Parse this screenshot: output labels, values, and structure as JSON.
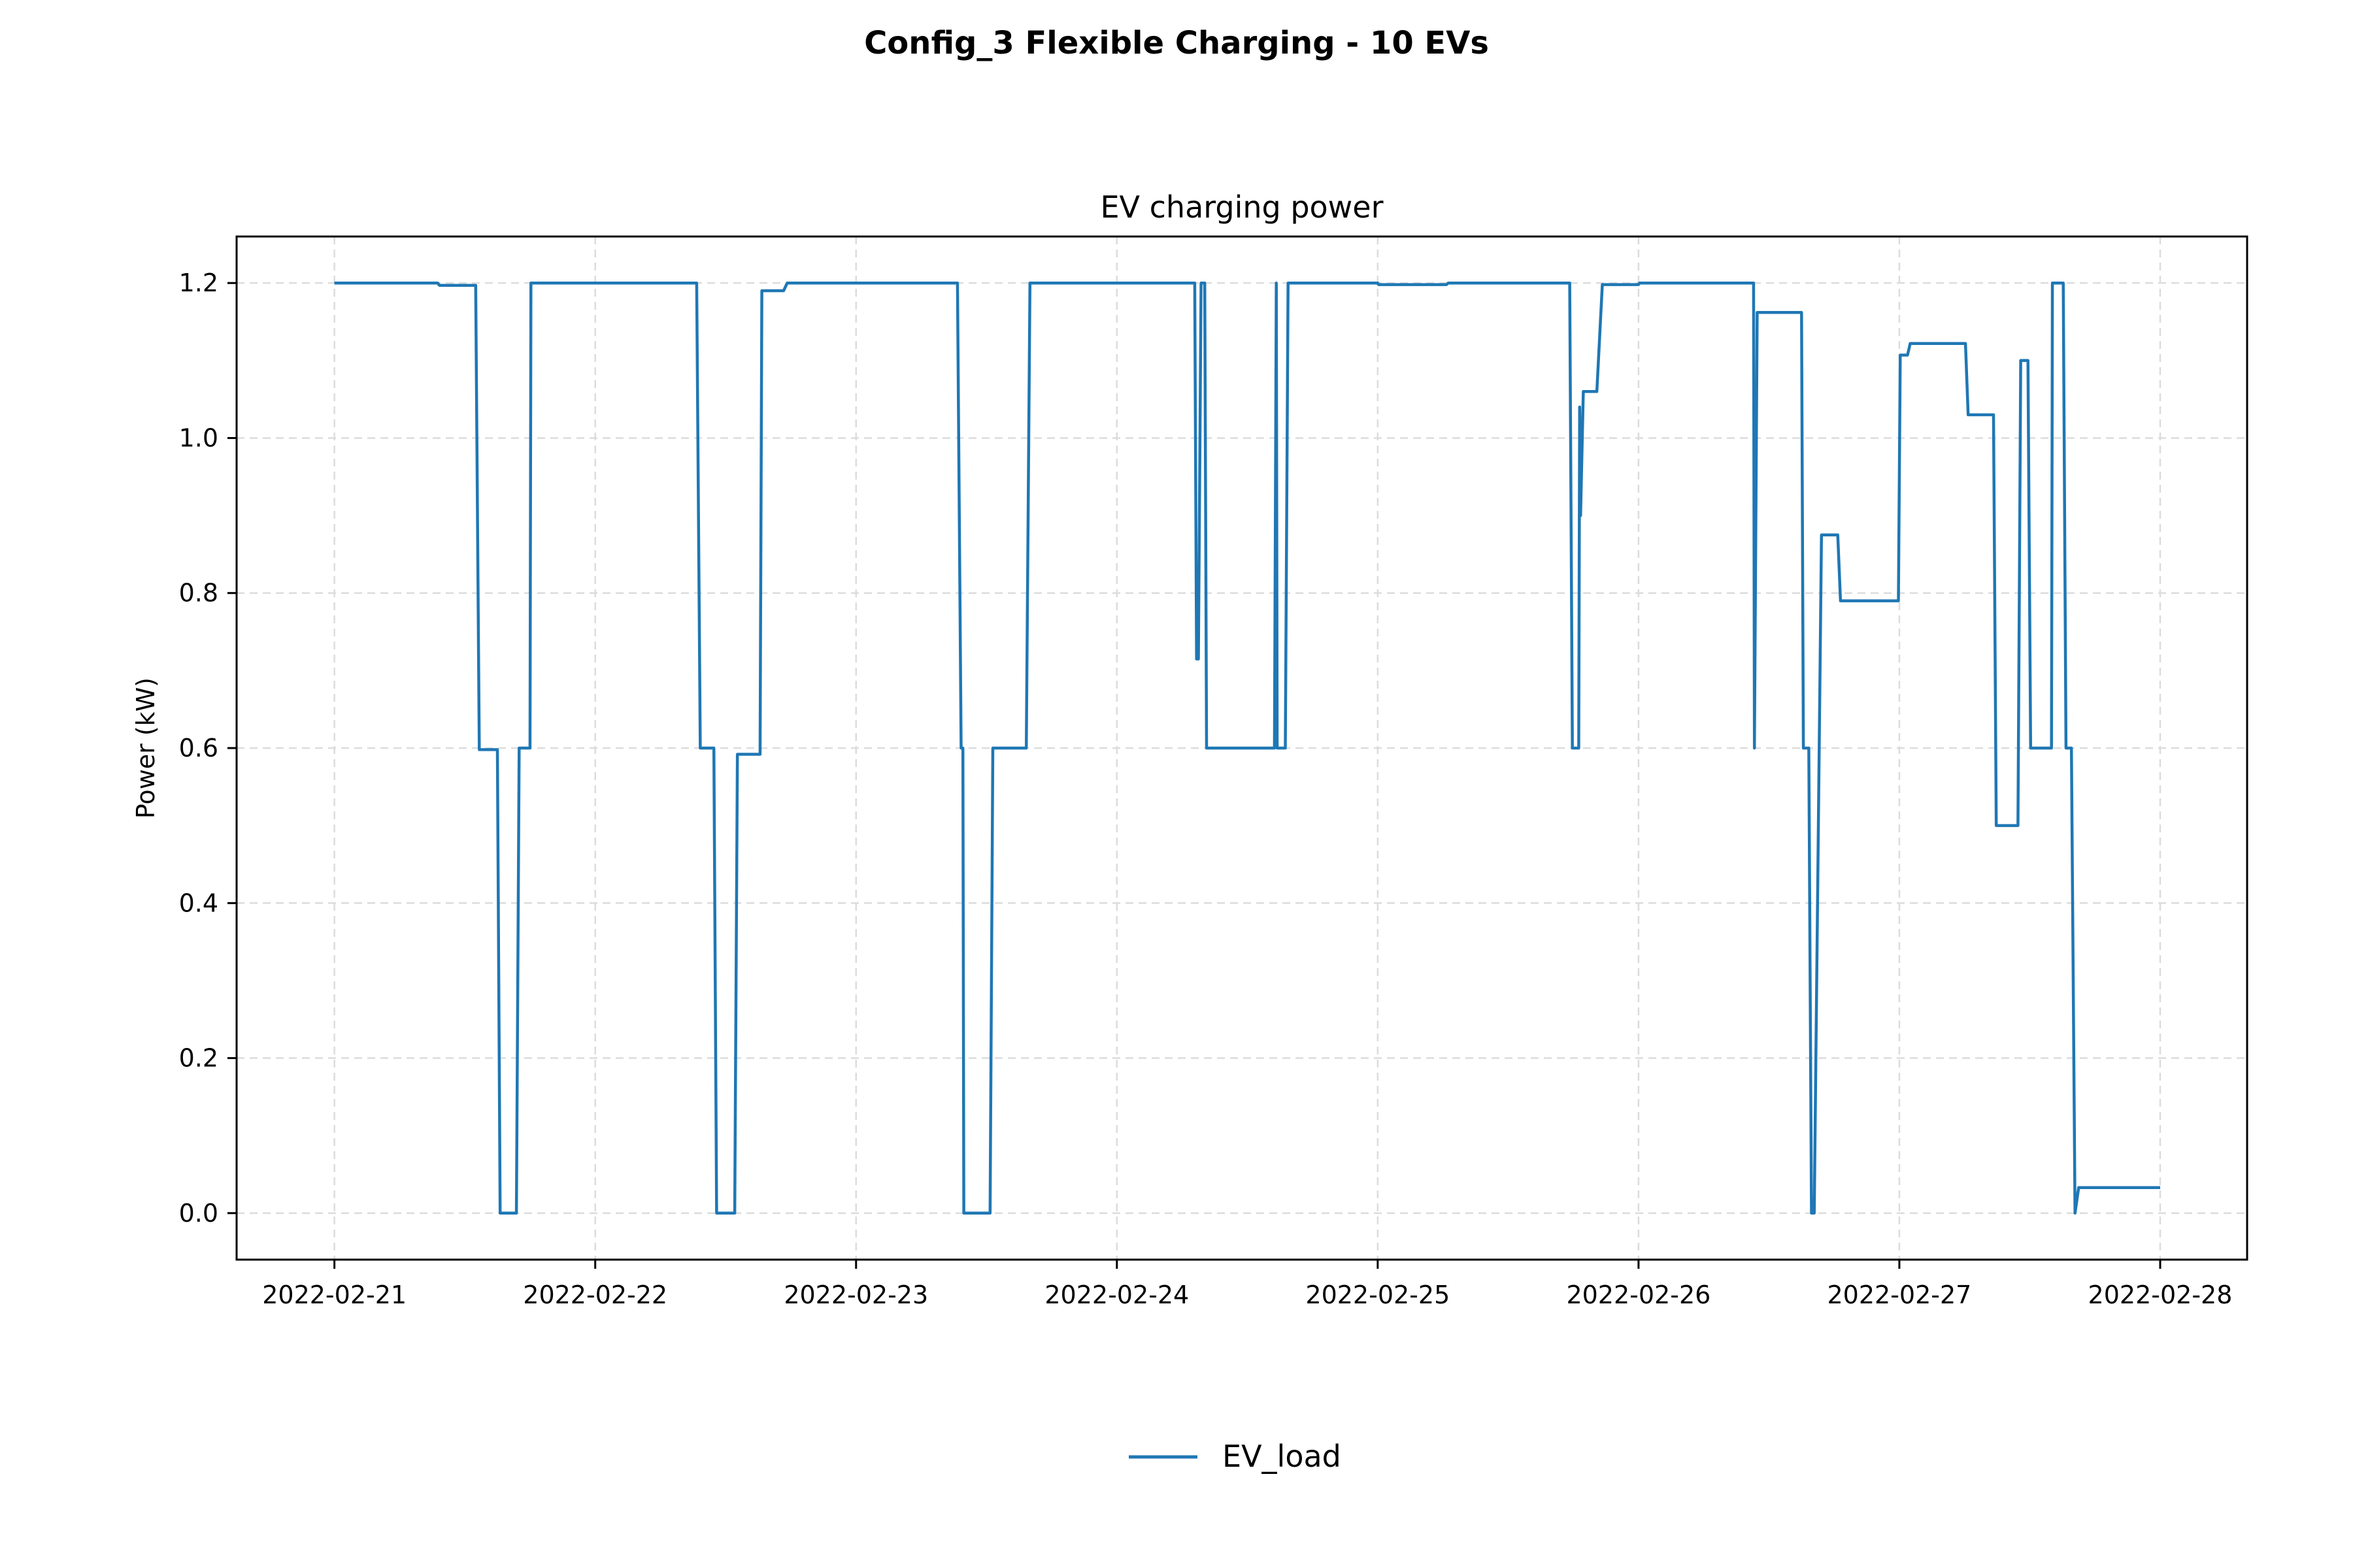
{
  "figure": {
    "suptitle": "Config_3 Flexible Charging - 10 EVs"
  },
  "chart_data": {
    "type": "line",
    "title": "EV charging power",
    "xlabel": "",
    "ylabel": "Power (kW)",
    "x_ticks": [
      "2022-02-21",
      "2022-02-22",
      "2022-02-23",
      "2022-02-24",
      "2022-02-25",
      "2022-02-26",
      "2022-02-27",
      "2022-02-28"
    ],
    "y_ticks": [
      "0.0",
      "0.2",
      "0.4",
      "0.6",
      "0.8",
      "1.0",
      "1.2"
    ],
    "xlim": [
      "2022-02-20T15:00",
      "2022-02-28T08:00"
    ],
    "ylim": [
      -0.06,
      1.26
    ],
    "grid": true,
    "legend_position": "bottom-center",
    "series": [
      {
        "name": "EV_load",
        "color": "#1f77b4",
        "points": [
          [
            "2022-02-21T00:00",
            1.2
          ],
          [
            "2022-02-21T09:30",
            1.2
          ],
          [
            "2022-02-21T09:40",
            1.197
          ],
          [
            "2022-02-21T13:00",
            1.197
          ],
          [
            "2022-02-21T13:20",
            0.598
          ],
          [
            "2022-02-21T15:00",
            0.598
          ],
          [
            "2022-02-21T15:15",
            0.0
          ],
          [
            "2022-02-21T16:45",
            0.0
          ],
          [
            "2022-02-21T17:00",
            0.6
          ],
          [
            "2022-02-21T18:00",
            0.6
          ],
          [
            "2022-02-21T18:05",
            1.2
          ],
          [
            "2022-02-22T09:20",
            1.2
          ],
          [
            "2022-02-22T09:40",
            0.6
          ],
          [
            "2022-02-22T10:55",
            0.6
          ],
          [
            "2022-02-22T11:10",
            0.0
          ],
          [
            "2022-02-22T12:50",
            0.0
          ],
          [
            "2022-02-22T13:05",
            0.592
          ],
          [
            "2022-02-22T15:10",
            0.592
          ],
          [
            "2022-02-22T15:20",
            1.19
          ],
          [
            "2022-02-22T17:20",
            1.19
          ],
          [
            "2022-02-22T17:40",
            1.2
          ],
          [
            "2022-02-23T09:20",
            1.2
          ],
          [
            "2022-02-23T09:40",
            0.6
          ],
          [
            "2022-02-23T09:50",
            0.6
          ],
          [
            "2022-02-23T09:55",
            0.0
          ],
          [
            "2022-02-23T12:20",
            0.0
          ],
          [
            "2022-02-23T12:35",
            0.6
          ],
          [
            "2022-02-23T15:40",
            0.6
          ],
          [
            "2022-02-23T16:00",
            1.2
          ],
          [
            "2022-02-24T07:10",
            1.2
          ],
          [
            "2022-02-24T07:20",
            0.715
          ],
          [
            "2022-02-24T07:30",
            0.715
          ],
          [
            "2022-02-24T07:45",
            1.2
          ],
          [
            "2022-02-24T08:05",
            1.2
          ],
          [
            "2022-02-24T08:15",
            0.6
          ],
          [
            "2022-02-24T14:30",
            0.6
          ],
          [
            "2022-02-24T14:40",
            1.2
          ],
          [
            "2022-02-24T14:45",
            0.6
          ],
          [
            "2022-02-24T15:30",
            0.6
          ],
          [
            "2022-02-24T15:45",
            1.2
          ],
          [
            "2022-02-25T00:00",
            1.2
          ],
          [
            "2022-02-25T00:05",
            1.198
          ],
          [
            "2022-02-25T06:20",
            1.198
          ],
          [
            "2022-02-25T06:30",
            1.2
          ],
          [
            "2022-02-25T17:40",
            1.2
          ],
          [
            "2022-02-25T17:55",
            0.6
          ],
          [
            "2022-02-25T18:30",
            0.6
          ],
          [
            "2022-02-25T18:35",
            1.04
          ],
          [
            "2022-02-25T18:40",
            0.9
          ],
          [
            "2022-02-25T18:55",
            1.06
          ],
          [
            "2022-02-25T20:10",
            1.06
          ],
          [
            "2022-02-25T20:40",
            1.198
          ],
          [
            "2022-02-26T00:00",
            1.198
          ],
          [
            "2022-02-26T00:05",
            1.2
          ],
          [
            "2022-02-26T10:35",
            1.2
          ],
          [
            "2022-02-26T10:40",
            0.6
          ],
          [
            "2022-02-26T10:55",
            1.162
          ],
          [
            "2022-02-26T15:00",
            1.162
          ],
          [
            "2022-02-26T15:10",
            0.6
          ],
          [
            "2022-02-26T15:40",
            0.6
          ],
          [
            "2022-02-26T15:55",
            0.0
          ],
          [
            "2022-02-26T16:10",
            0.0
          ],
          [
            "2022-02-26T16:50",
            0.875
          ],
          [
            "2022-02-26T18:20",
            0.875
          ],
          [
            "2022-02-26T18:35",
            0.79
          ],
          [
            "2022-02-26T23:55",
            0.79
          ],
          [
            "2022-02-27T00:05",
            1.107
          ],
          [
            "2022-02-27T00:45",
            1.107
          ],
          [
            "2022-02-27T01:00",
            1.122
          ],
          [
            "2022-02-27T06:05",
            1.122
          ],
          [
            "2022-02-27T06:20",
            1.03
          ],
          [
            "2022-02-27T08:40",
            1.03
          ],
          [
            "2022-02-27T08:55",
            0.5
          ],
          [
            "2022-02-27T10:55",
            0.5
          ],
          [
            "2022-02-27T11:10",
            1.1
          ],
          [
            "2022-02-27T11:50",
            1.1
          ],
          [
            "2022-02-27T12:05",
            0.6
          ],
          [
            "2022-02-27T14:00",
            0.6
          ],
          [
            "2022-02-27T14:05",
            1.2
          ],
          [
            "2022-02-27T15:05",
            1.2
          ],
          [
            "2022-02-27T15:20",
            0.6
          ],
          [
            "2022-02-27T15:50",
            0.6
          ],
          [
            "2022-02-27T16:10",
            0.0
          ],
          [
            "2022-02-27T16:30",
            0.033
          ],
          [
            "2022-02-28T00:00",
            0.033
          ]
        ]
      }
    ]
  }
}
